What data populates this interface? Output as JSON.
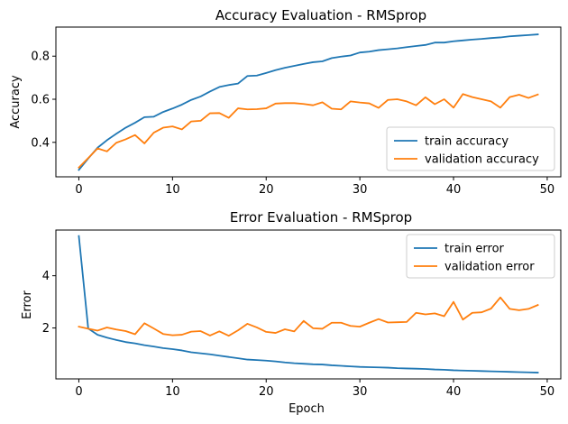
{
  "chart_data": [
    {
      "type": "line",
      "title": "Accuracy Evaluation - RMSprop",
      "xlabel": "",
      "ylabel": "Accuracy",
      "xlim": [
        -2.45,
        51.45
      ],
      "ylim": [
        0.24,
        0.935
      ],
      "xticks": [
        0,
        10,
        20,
        30,
        40,
        50
      ],
      "yticks": [
        0.4,
        0.6,
        0.8
      ],
      "ytick_labels": [
        "0.4",
        "0.6",
        "0.8"
      ],
      "grid": false,
      "legend_position": "lower-right",
      "x": [
        0,
        1,
        2,
        3,
        4,
        5,
        6,
        7,
        8,
        9,
        10,
        11,
        12,
        13,
        14,
        15,
        16,
        17,
        18,
        19,
        20,
        21,
        22,
        23,
        24,
        25,
        26,
        27,
        28,
        29,
        30,
        31,
        32,
        33,
        34,
        35,
        36,
        37,
        38,
        39,
        40,
        41,
        42,
        43,
        44,
        45,
        46,
        47,
        48,
        49
      ],
      "series": [
        {
          "name": "train accuracy",
          "color": "#1f77b4",
          "values": [
            0.272,
            0.325,
            0.375,
            0.41,
            0.44,
            0.468,
            0.491,
            0.517,
            0.519,
            0.541,
            0.557,
            0.575,
            0.597,
            0.613,
            0.636,
            0.657,
            0.666,
            0.673,
            0.708,
            0.71,
            0.722,
            0.735,
            0.746,
            0.755,
            0.764,
            0.772,
            0.776,
            0.791,
            0.798,
            0.803,
            0.817,
            0.821,
            0.828,
            0.832,
            0.836,
            0.842,
            0.847,
            0.852,
            0.863,
            0.863,
            0.869,
            0.873,
            0.877,
            0.88,
            0.884,
            0.887,
            0.892,
            0.895,
            0.898,
            0.901
          ]
        },
        {
          "name": "validation accuracy",
          "color": "#ff7f0e",
          "values": [
            0.283,
            0.327,
            0.372,
            0.358,
            0.398,
            0.414,
            0.434,
            0.395,
            0.445,
            0.468,
            0.474,
            0.46,
            0.497,
            0.5,
            0.535,
            0.536,
            0.514,
            0.558,
            0.553,
            0.554,
            0.558,
            0.58,
            0.582,
            0.582,
            0.578,
            0.572,
            0.586,
            0.556,
            0.553,
            0.59,
            0.585,
            0.581,
            0.56,
            0.597,
            0.6,
            0.59,
            0.572,
            0.609,
            0.577,
            0.6,
            0.561,
            0.624,
            0.61,
            0.6,
            0.59,
            0.561,
            0.61,
            0.621,
            0.606,
            0.622
          ]
        }
      ]
    },
    {
      "type": "line",
      "title": "Error Evaluation - RMSprop",
      "xlabel": "Epoch",
      "ylabel": "Error",
      "xlim": [
        -2.45,
        51.45
      ],
      "ylim": [
        0.05,
        5.75
      ],
      "xticks": [
        0,
        10,
        20,
        30,
        40,
        50
      ],
      "yticks": [
        2,
        4
      ],
      "ytick_labels": [
        "2",
        "4"
      ],
      "grid": false,
      "legend_position": "upper-right",
      "x": [
        0,
        1,
        2,
        3,
        4,
        5,
        6,
        7,
        8,
        9,
        10,
        11,
        12,
        13,
        14,
        15,
        16,
        17,
        18,
        19,
        20,
        21,
        22,
        23,
        24,
        25,
        26,
        27,
        28,
        29,
        30,
        31,
        32,
        33,
        34,
        35,
        36,
        37,
        38,
        39,
        40,
        41,
        42,
        43,
        44,
        45,
        46,
        47,
        48,
        49
      ],
      "series": [
        {
          "name": "train error",
          "color": "#1f77b4",
          "values": [
            5.52,
            1.98,
            1.74,
            1.63,
            1.54,
            1.46,
            1.41,
            1.34,
            1.29,
            1.23,
            1.19,
            1.14,
            1.07,
            1.03,
            0.99,
            0.94,
            0.89,
            0.84,
            0.79,
            0.77,
            0.75,
            0.72,
            0.68,
            0.65,
            0.63,
            0.61,
            0.6,
            0.57,
            0.55,
            0.53,
            0.51,
            0.5,
            0.49,
            0.48,
            0.46,
            0.45,
            0.44,
            0.43,
            0.41,
            0.4,
            0.38,
            0.37,
            0.36,
            0.35,
            0.34,
            0.33,
            0.32,
            0.31,
            0.3,
            0.29
          ]
        },
        {
          "name": "validation error",
          "color": "#ff7f0e",
          "values": [
            2.05,
            1.97,
            1.9,
            2.02,
            1.94,
            1.88,
            1.76,
            2.18,
            1.98,
            1.77,
            1.72,
            1.74,
            1.86,
            1.88,
            1.71,
            1.87,
            1.7,
            1.91,
            2.16,
            2.02,
            1.85,
            1.81,
            1.95,
            1.87,
            2.27,
            1.99,
            1.97,
            2.2,
            2.2,
            2.08,
            2.05,
            2.2,
            2.34,
            2.21,
            2.22,
            2.23,
            2.58,
            2.52,
            2.56,
            2.45,
            3.0,
            2.32,
            2.58,
            2.6,
            2.74,
            3.17,
            2.73,
            2.68,
            2.73,
            2.88
          ]
        }
      ]
    }
  ]
}
